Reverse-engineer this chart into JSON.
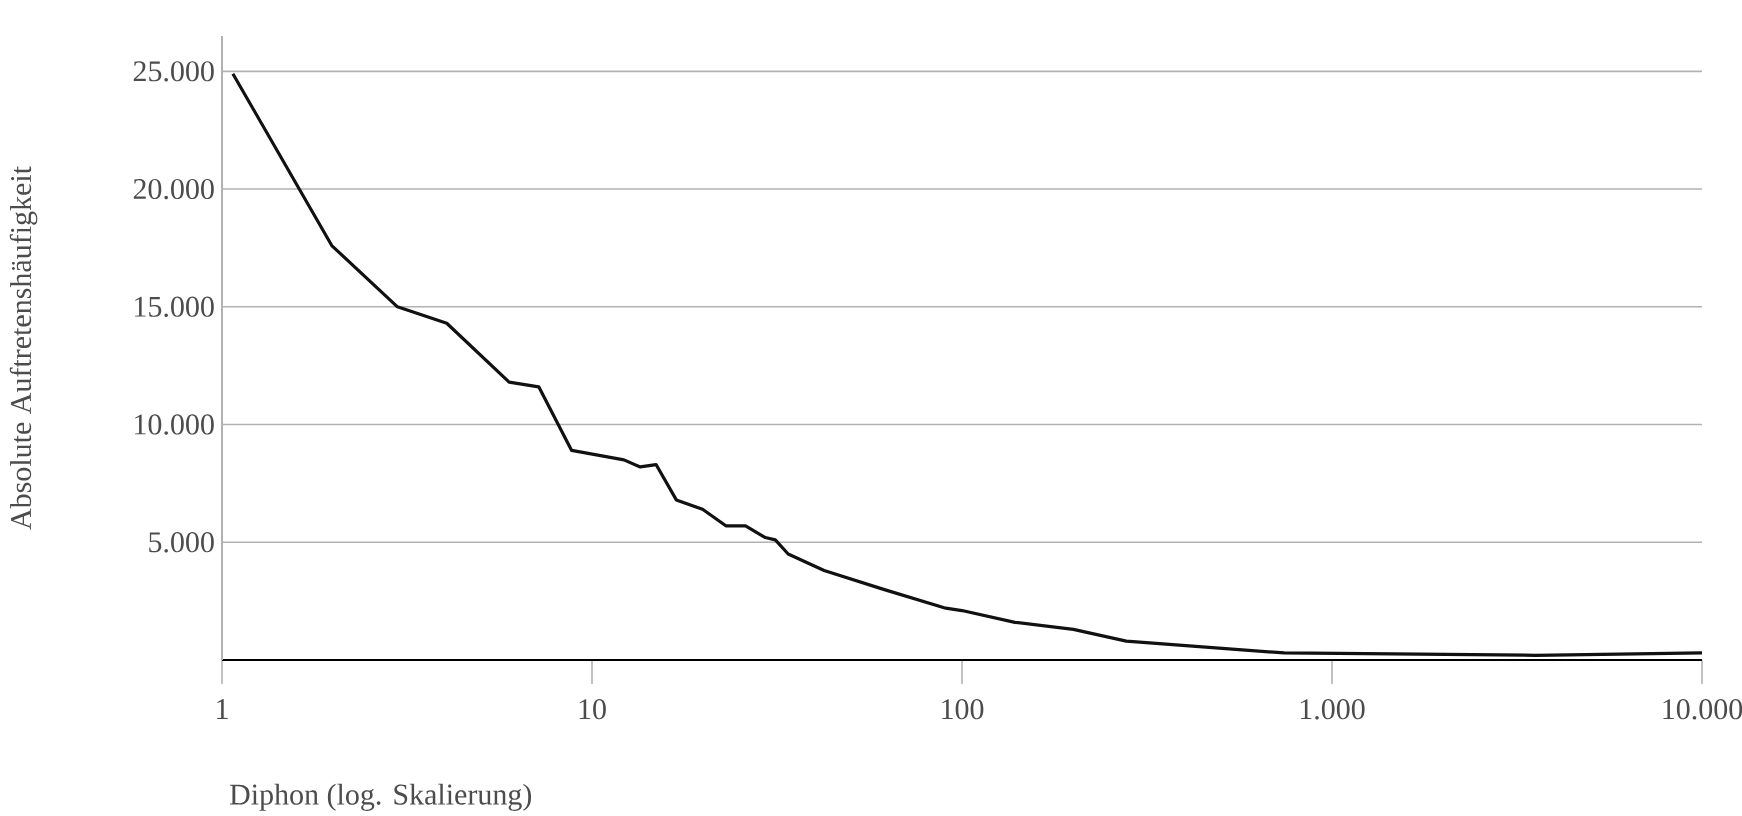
{
  "chart_data": {
    "type": "line",
    "xlabel": "Diphon (log. Skalierung)",
    "ylabel": "Absolute Auftretenshäufigkeit",
    "log": "x",
    "grid": "y",
    "marker": "none",
    "line_style": "solid",
    "xlim": [
      1,
      10000
    ],
    "ylim": [
      0,
      26500
    ],
    "xticks": [
      {
        "value": 1,
        "label": "1"
      },
      {
        "value": 10,
        "label": "10"
      },
      {
        "value": 100,
        "label": "100"
      },
      {
        "value": 1000,
        "label": "1.000"
      },
      {
        "value": 10000,
        "label": "10.000"
      }
    ],
    "yticks": [
      {
        "value": 5000,
        "label": "5.000"
      },
      {
        "value": 10000,
        "label": "10.000"
      },
      {
        "value": 15000,
        "label": "15.000"
      },
      {
        "value": 20000,
        "label": "20.000"
      },
      {
        "value": 25000,
        "label": "25.000"
      }
    ],
    "series": [
      {
        "color": "#111111",
        "x": [
          1.07,
          1.98,
          2.98,
          4.05,
          5.97,
          7.18,
          8.81,
          12.2,
          13.5,
          14.9,
          16.9,
          19.9,
          23,
          26,
          29.4,
          31.3,
          33.9,
          42.4,
          61.4,
          90.4,
          100,
          139,
          200,
          278,
          743,
          3550,
          10000
        ],
        "values": [
          24900,
          17600,
          15000,
          14300,
          11800,
          11600,
          8900,
          8500,
          8200,
          8300,
          6800,
          6400,
          5700,
          5700,
          5200,
          5100,
          4500,
          3800,
          3000,
          2200,
          2100,
          1600,
          1300,
          800,
          300,
          200,
          300
        ]
      }
    ]
  }
}
